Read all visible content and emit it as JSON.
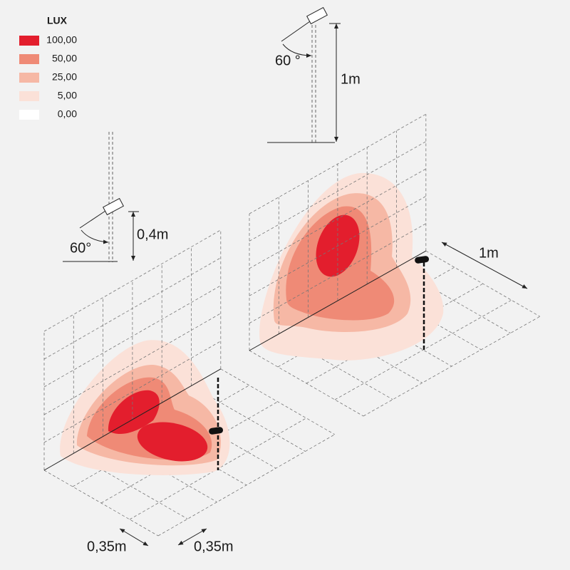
{
  "legend": {
    "title": "LUX",
    "items": [
      {
        "label": "100,00",
        "color": "#e31e2d"
      },
      {
        "label": "50,00",
        "color": "#ef8a76"
      },
      {
        "label": "25,00",
        "color": "#f6b8a5"
      },
      {
        "label": "5,00",
        "color": "#fbe1d8"
      },
      {
        "label": "0,00",
        "color": "#ffffff"
      }
    ]
  },
  "right_fixture": {
    "angle": "60 °",
    "height": "1m"
  },
  "left_fixture": {
    "angle": "60°",
    "height": "0,4m"
  },
  "right_grid": {
    "width": "1m"
  },
  "left_grid": {
    "spacing": [
      "0,35m",
      "0,35m"
    ]
  }
}
